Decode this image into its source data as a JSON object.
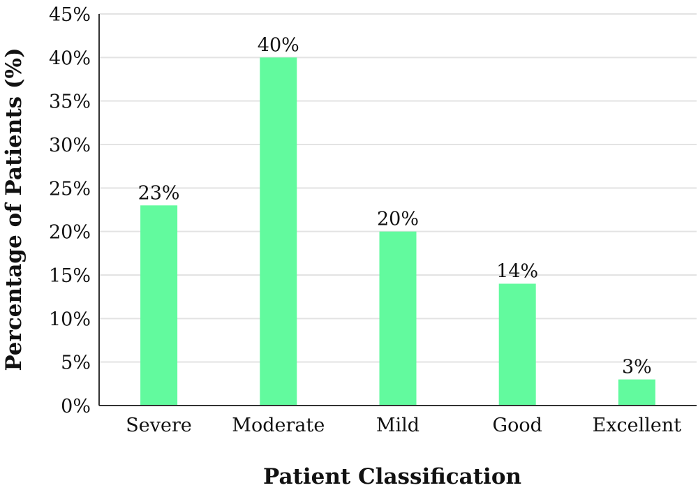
{
  "chart_data": {
    "type": "bar",
    "title": "",
    "xlabel": "Patient Classification",
    "ylabel": "Percentage of Patients (%)",
    "categories": [
      "Severe",
      "Moderate",
      "Mild",
      "Good",
      "Excellent"
    ],
    "values": [
      23,
      40,
      20,
      14,
      3
    ],
    "data_labels": [
      "23%",
      "40%",
      "20%",
      "14%",
      "3%"
    ],
    "ylim": [
      0,
      45
    ],
    "yticks": [
      0,
      5,
      10,
      15,
      20,
      25,
      30,
      35,
      40,
      45
    ],
    "ytick_labels": [
      "0%",
      "5%",
      "10%",
      "15%",
      "20%",
      "25%",
      "30%",
      "35%",
      "40%",
      "45%"
    ],
    "grid": true,
    "bar_color": "#62FA9E",
    "grid_color": "#E3E3E3",
    "axis_color": "#333333"
  }
}
